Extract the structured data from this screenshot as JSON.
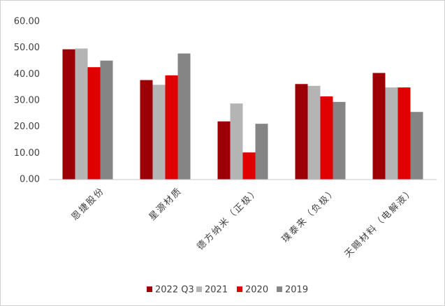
{
  "chart_data": {
    "type": "bar",
    "categories": [
      "恩捷股份",
      "星源材质",
      "德方纳米（正极）",
      "璞泰来（负极）",
      "天赐材料（电解液）"
    ],
    "series": [
      {
        "name": "2022 Q3",
        "color": "#9c0006",
        "values": [
          49.5,
          37.8,
          22.1,
          36.3,
          40.5
        ]
      },
      {
        "name": "2021",
        "color": "#b4b4b4",
        "values": [
          49.8,
          36.0,
          28.9,
          35.6,
          35.0
        ]
      },
      {
        "name": "2020",
        "color": "#e00000",
        "values": [
          42.7,
          39.6,
          10.3,
          31.6,
          35.0
        ]
      },
      {
        "name": "2019",
        "color": "#858585",
        "values": [
          45.2,
          47.9,
          21.2,
          29.5,
          25.7
        ]
      }
    ],
    "ylim": [
      0,
      60
    ],
    "yticks": [
      {
        "value": 0,
        "label": "0.00"
      },
      {
        "value": 10,
        "label": "10.00"
      },
      {
        "value": 20,
        "label": "20.00"
      },
      {
        "value": 30,
        "label": "30.00"
      },
      {
        "value": 40,
        "label": "40.00"
      },
      {
        "value": 50,
        "label": "50.00"
      },
      {
        "value": 60,
        "label": "60.00"
      }
    ],
    "grid": false,
    "legend": "bottom"
  }
}
